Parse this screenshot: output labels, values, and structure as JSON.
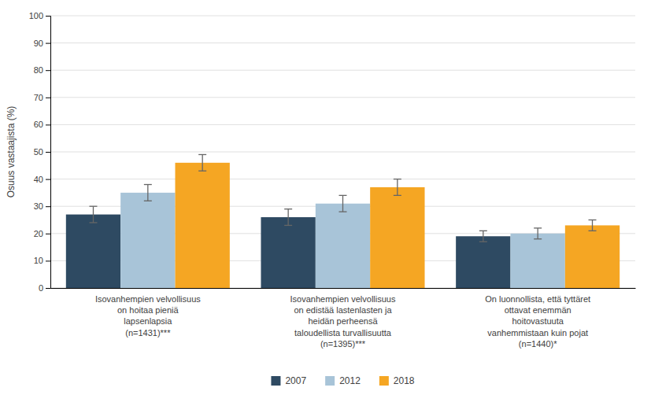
{
  "chart_data": {
    "type": "bar",
    "categories": [
      "Isovanhempien velvollisuus\non hoitaa pieniä\nlapsenlapsia\n(n=1431)***",
      "Isovanhempien velvollisuus\non edistää lastenlasten ja\nheidän perheensä\ntaloudellista turvallisuutta\n(n=1395)***",
      "On luonnollista, että tyttäret\nottavat enemmän\nhoitovastuuta\nvanhemmistaan kuin pojat\n(n=1440)*"
    ],
    "series": [
      {
        "name": "2007",
        "color": "#2e4a62",
        "values": [
          27,
          26,
          19
        ],
        "errors": [
          3,
          3,
          2
        ]
      },
      {
        "name": "2012",
        "color": "#a8c4d8",
        "values": [
          35,
          31,
          20
        ],
        "errors": [
          3,
          3,
          2
        ]
      },
      {
        "name": "2018",
        "color": "#f5a623",
        "values": [
          46,
          37,
          23
        ],
        "errors": [
          3,
          3,
          2
        ]
      }
    ],
    "y_label": "Osuus vastaajista (%)",
    "ylim": [
      0,
      100
    ],
    "yticks": [
      0,
      10,
      20,
      30,
      40,
      50,
      60,
      70,
      80,
      90,
      100
    ],
    "grid": true,
    "legend": "bottom"
  }
}
